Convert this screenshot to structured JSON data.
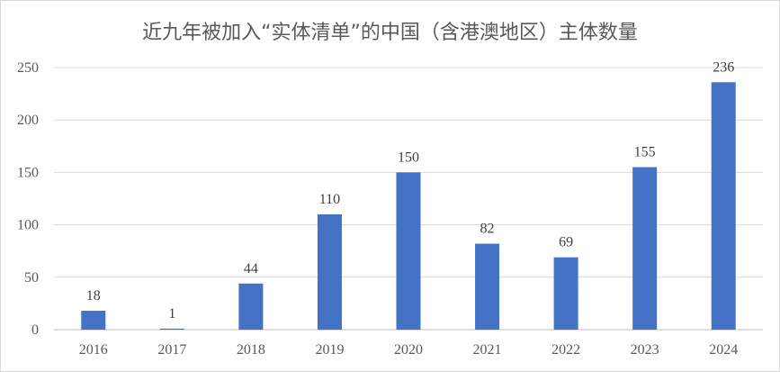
{
  "chart_data": {
    "type": "bar",
    "title": "近九年被加入“实体清单”的中国（含港澳地区）主体数量",
    "xlabel": "",
    "ylabel": "",
    "categories": [
      "2016",
      "2017",
      "2018",
      "2019",
      "2020",
      "2021",
      "2022",
      "2023",
      "2024"
    ],
    "values": [
      18,
      1,
      44,
      110,
      150,
      82,
      69,
      155,
      236
    ],
    "data_labels": [
      "18",
      "1",
      "44",
      "110",
      "150",
      "82",
      "69",
      "155",
      "236"
    ],
    "ylim": [
      0,
      250
    ],
    "yticks": [
      "0",
      "50",
      "100",
      "150",
      "200",
      "250"
    ],
    "grid": true,
    "legend": "none",
    "bar_color": "#4472c4"
  }
}
